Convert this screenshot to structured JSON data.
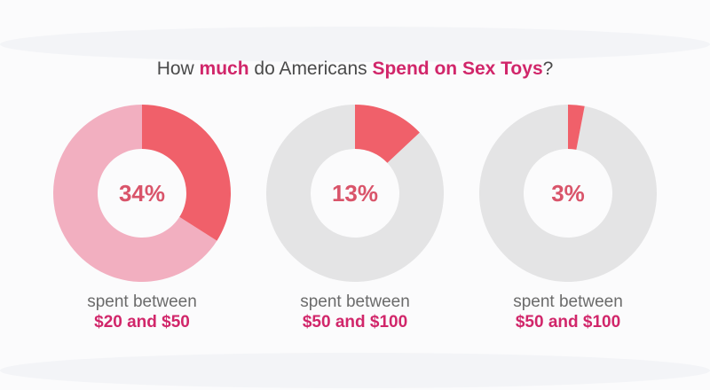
{
  "title": {
    "p1": "How ",
    "p2": "much",
    "p3": " do Americans ",
    "p4": "Spend on Sex Toys",
    "p5": "?"
  },
  "colors": {
    "highlight": "#f0606a",
    "first_rest": "#f2afc0",
    "rest": "#e4e4e5",
    "percent_text": "#d9546a",
    "accent": "#d1266a"
  },
  "chart_data": {
    "type": "pie",
    "charts": [
      {
        "value": 34,
        "label": "34%",
        "caption": "spent between",
        "range": "$20 and $50"
      },
      {
        "value": 13,
        "label": "13%",
        "caption": "spent between",
        "range": "$50 and $100"
      },
      {
        "value": 3,
        "label": "3%",
        "caption": "spent between",
        "range": "$50 and $100"
      }
    ]
  }
}
